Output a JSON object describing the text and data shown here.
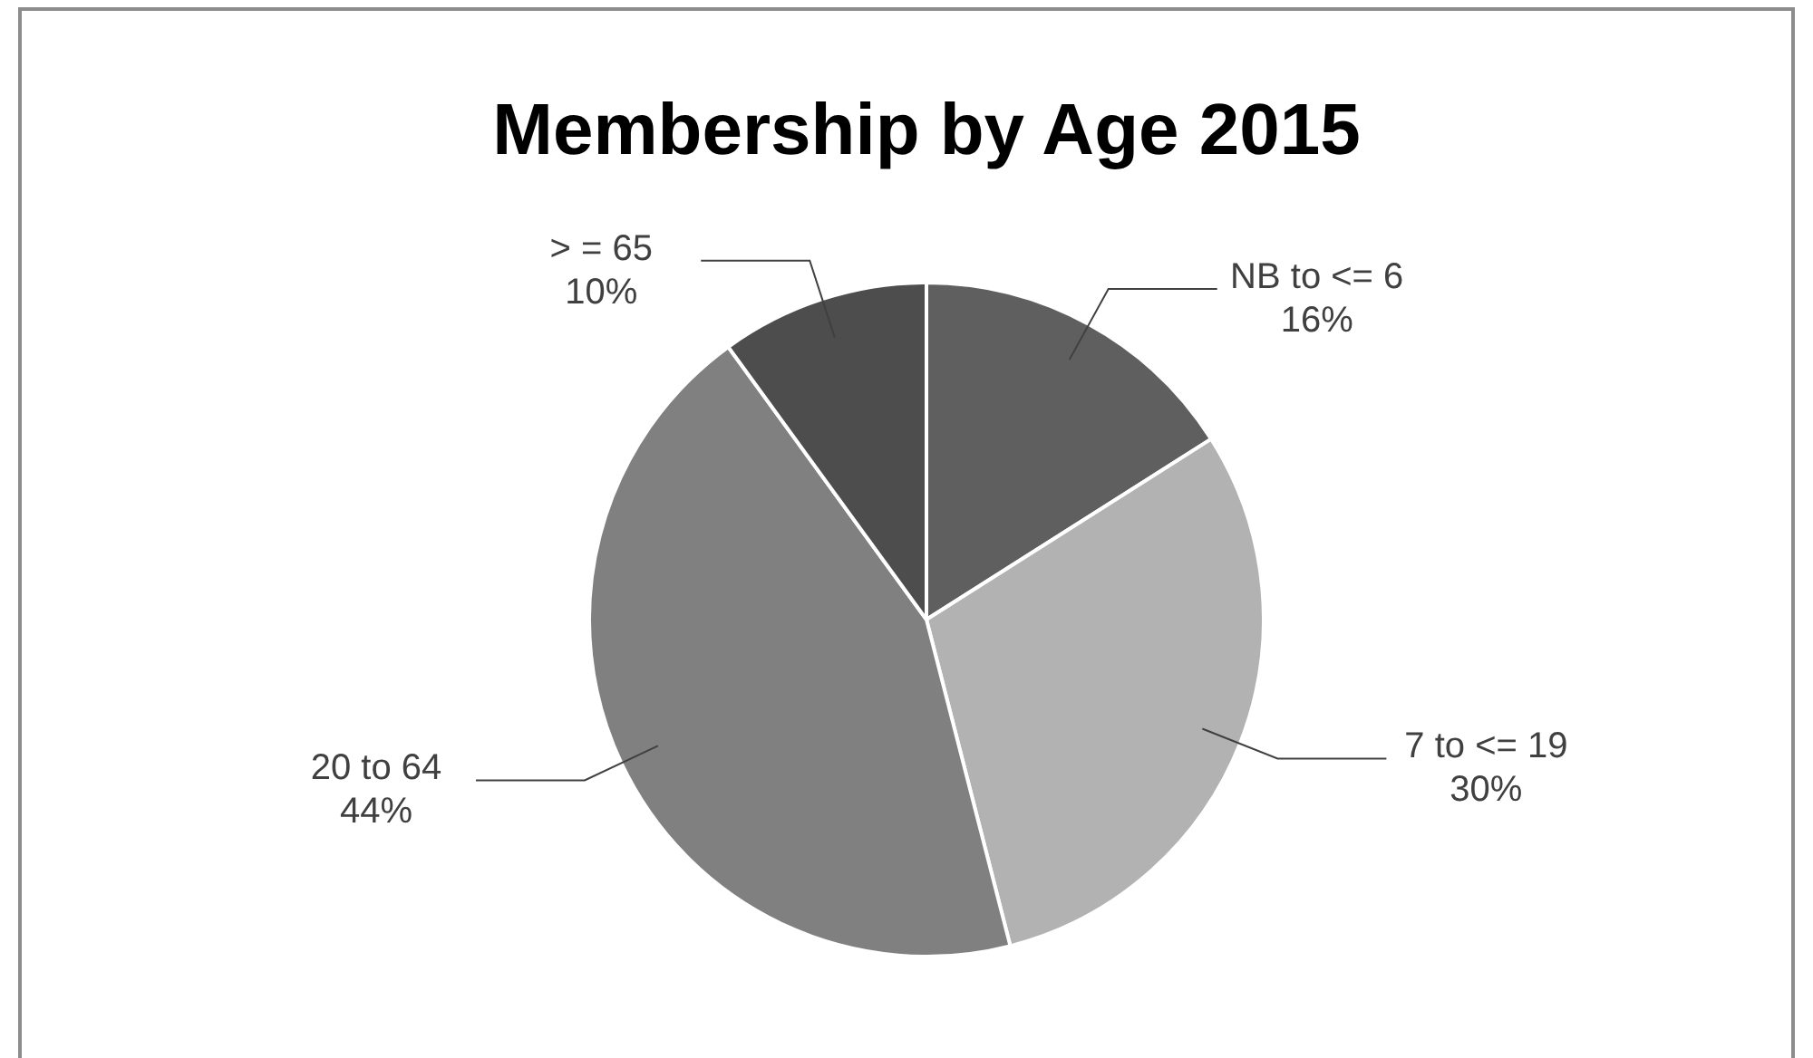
{
  "chart_data": {
    "type": "pie",
    "title": "Membership by Age 2015",
    "categories": [
      "NB to <= 6",
      "7 to <= 19",
      "20 to 64",
      "> = 65"
    ],
    "values": [
      16,
      30,
      44,
      10
    ],
    "value_labels": [
      "16%",
      "30%",
      "44%",
      "10%"
    ],
    "colors": [
      "#5f5f5f",
      "#b2b2b2",
      "#808080",
      "#4d4d4d"
    ],
    "legend": false
  }
}
